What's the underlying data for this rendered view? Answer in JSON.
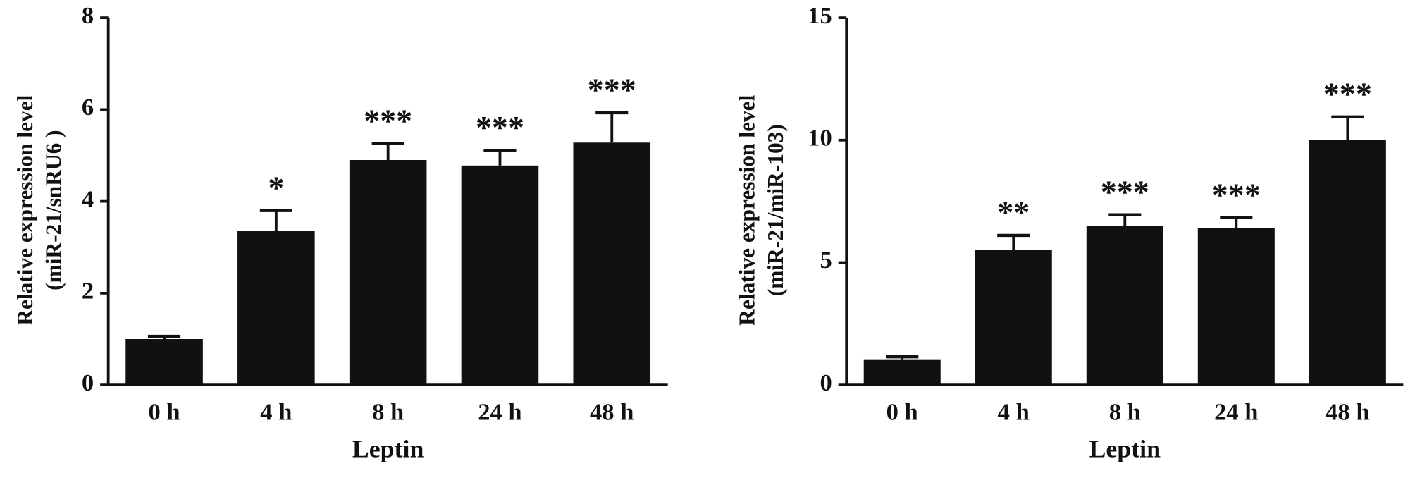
{
  "chart_data": [
    {
      "type": "bar",
      "ylabel": [
        "Relative expression level",
        "(miR-21/snRU6 )"
      ],
      "xlabel": "Leptin",
      "categories": [
        "0 h",
        "4 h",
        "8 h",
        "24 h",
        "48 h"
      ],
      "values": [
        1.0,
        3.35,
        4.9,
        4.78,
        5.28
      ],
      "errors": [
        0.06,
        0.45,
        0.36,
        0.33,
        0.65
      ],
      "annotations": [
        null,
        "*",
        "***",
        "***",
        "***"
      ],
      "color": "#111111",
      "ylim": [
        0,
        8
      ],
      "yticks": [
        0,
        2,
        4,
        6,
        8
      ]
    },
    {
      "type": "bar",
      "ylabel": [
        "Relative expression level",
        "(miR-21/miR-103)"
      ],
      "xlabel": "Leptin",
      "categories": [
        "0 h",
        "4 h",
        "8 h",
        "24 h",
        "48 h"
      ],
      "values": [
        1.05,
        5.53,
        6.5,
        6.4,
        10.0
      ],
      "errors": [
        0.1,
        0.58,
        0.45,
        0.44,
        0.95
      ],
      "annotations": [
        null,
        "**",
        "***",
        "***",
        "***"
      ],
      "color": "#111111",
      "ylim": [
        0,
        15
      ],
      "yticks": [
        0,
        5,
        10,
        15
      ]
    }
  ]
}
